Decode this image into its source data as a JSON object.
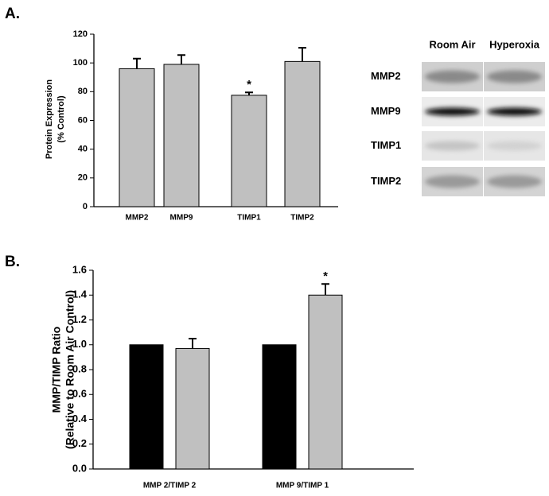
{
  "panel_labels": [
    "A.",
    "B."
  ],
  "blot": {
    "columns": [
      "Room Air",
      "Hyperoxia"
    ],
    "rows": [
      "MMP2",
      "MMP9",
      "TIMP1",
      "TIMP2"
    ]
  },
  "chart_data": [
    {
      "type": "bar",
      "y_label": [
        "Protein Expression",
        "(% Control)"
      ],
      "categories": [
        "MMP2",
        "MMP9",
        "TIMP1",
        "TIMP2"
      ],
      "values": [
        96,
        99,
        77.5,
        101
      ],
      "errors": [
        7,
        6.5,
        2,
        9.5
      ],
      "significance": [
        null,
        null,
        "*",
        null
      ],
      "color": "#c0c0c0",
      "ylim": [
        0,
        120
      ],
      "yticks": [
        0,
        20,
        40,
        60,
        80,
        100,
        120
      ]
    },
    {
      "type": "grouped_bar",
      "y_label": [
        "MMP/TIMP Ratio",
        "(Relative to Room Air Control)"
      ],
      "categories": [
        "MMP 2/TIMP 2",
        "MMP 9/TIMP 1"
      ],
      "series": [
        {
          "color": "#000000",
          "values": [
            1.0,
            1.0
          ]
        },
        {
          "color": "#c0c0c0",
          "values": [
            0.97,
            1.4
          ],
          "errors": [
            0.08,
            0.09
          ],
          "significance": [
            null,
            "*"
          ]
        }
      ],
      "ylim": [
        0,
        1.6
      ],
      "yticks": [
        {
          "value": 0,
          "label": "0.0"
        },
        {
          "value": 0.2,
          "label": "0.2"
        },
        {
          "value": 0.4,
          "label": "0.4"
        },
        {
          "value": 0.6,
          "label": "0.6"
        },
        {
          "value": 0.8,
          "label": "0.8"
        },
        {
          "value": 1,
          "label": "1.0"
        },
        {
          "value": 1.2,
          "label": "1.2"
        },
        {
          "value": 1.4,
          "label": "1.4"
        },
        {
          "value": 1.6,
          "label": "1.6"
        }
      ]
    }
  ]
}
